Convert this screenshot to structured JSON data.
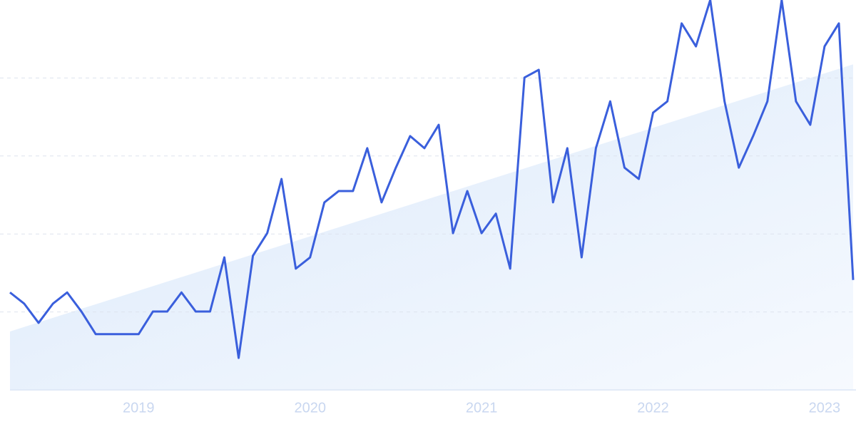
{
  "chart_data": {
    "type": "line",
    "categories": [
      null,
      null,
      null,
      null,
      null,
      null,
      null,
      null,
      null,
      "2019",
      null,
      null,
      null,
      null,
      null,
      null,
      null,
      null,
      null,
      null,
      null,
      "2020",
      null,
      null,
      null,
      null,
      null,
      null,
      null,
      null,
      null,
      null,
      null,
      "2021",
      null,
      null,
      null,
      null,
      null,
      null,
      null,
      null,
      null,
      null,
      null,
      "2022",
      null,
      null,
      null,
      null,
      null,
      null,
      null,
      null,
      null,
      null,
      null,
      "2023",
      null,
      null
    ],
    "series": [
      {
        "color": "#3a5fdc",
        "values": [
          25.0,
          22.1,
          17.2,
          22.1,
          25.0,
          20.1,
          14.3,
          14.3,
          14.3,
          14.3,
          20.1,
          20.1,
          25.0,
          20.1,
          20.1,
          34.0,
          8.2,
          34.4,
          40.2,
          54.1,
          31.1,
          34.0,
          48.1,
          51.0,
          51.0,
          62.0,
          48.1,
          57.0,
          65.1,
          62.0,
          68.0,
          40.2,
          51.0,
          40.2,
          45.2,
          31.1,
          80.1,
          82.1,
          48.1,
          62.0,
          34.0,
          62.0,
          74.0,
          57.0,
          54.1,
          71.1,
          74.0,
          94.0,
          88.1,
          100,
          74.0,
          57.0,
          65.1,
          74.0,
          100,
          74.0,
          68.0,
          88.1,
          94.0,
          28.2
        ]
      }
    ],
    "trend_values": [
      15.0,
      83.5
    ],
    "trend_color": "#dbe9fb",
    "ylim": [
      0,
      100
    ],
    "yticks": [
      20,
      40,
      60,
      80
    ],
    "grid": true
  }
}
